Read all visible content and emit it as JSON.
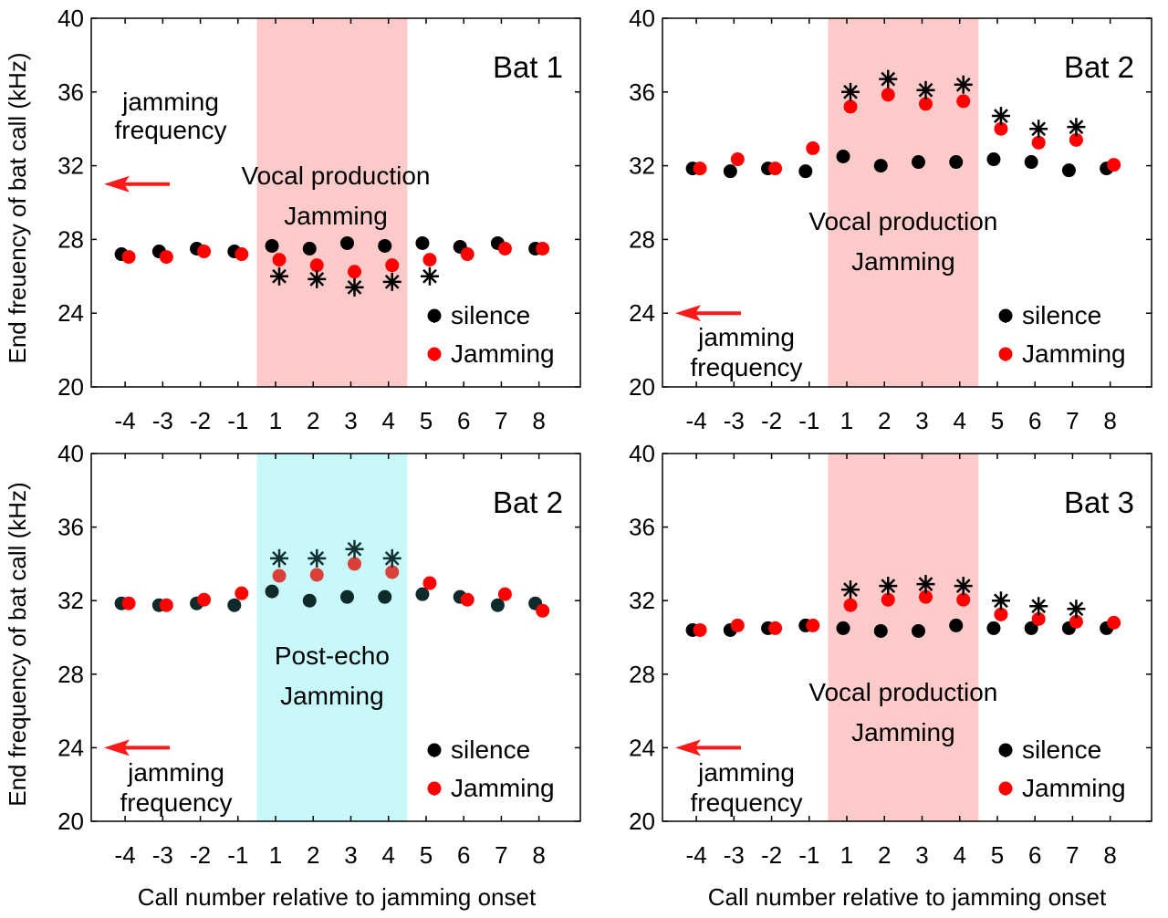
{
  "figure": {
    "xlabel": "Call number relative to jamming onset",
    "ylabel_top": "End freuency of bat call (kHz)",
    "ylabel_bottom": "End frequency of bat call (kHz)"
  },
  "colors": {
    "silence": "#000000",
    "jamming": "#ff0000",
    "vocal_band": "#fdcaca",
    "post_echo_band": "#c8f8fa",
    "arrow": "#ff1a1a"
  },
  "chart_data": [
    {
      "type": "scatter",
      "title": "Bat 1",
      "band_label": [
        "Vocal production",
        "Jamming"
      ],
      "band_style": "vocal",
      "band_range": [
        0.5,
        4.5
      ],
      "jamming_label": [
        "jamming",
        "frequency"
      ],
      "jamming_frequency_khz": 31,
      "categories": [
        "-4",
        "-3",
        "-2",
        "-1",
        "1",
        "2",
        "3",
        "4",
        "5",
        "6",
        "7",
        "8"
      ],
      "yticks": [
        "20",
        "24",
        "28",
        "32",
        "36",
        "40"
      ],
      "ylim": [
        20,
        40
      ],
      "legend_position": "bottom-right",
      "series": [
        {
          "name": "silence",
          "values": [
            27.2,
            27.35,
            27.5,
            27.35,
            27.65,
            27.5,
            27.8,
            27.65,
            27.8,
            27.6,
            27.8,
            27.5
          ]
        },
        {
          "name": "Jamming",
          "values": [
            27.05,
            27.05,
            27.35,
            27.2,
            26.9,
            26.6,
            26.25,
            26.6,
            26.9,
            27.2,
            27.5,
            27.5
          ]
        }
      ],
      "significance": [
        5,
        6,
        7,
        8,
        9
      ],
      "significance_values": [
        26.0,
        25.85,
        25.4,
        25.7,
        26.0
      ]
    },
    {
      "type": "scatter",
      "title": "Bat 2",
      "band_label": [
        "Vocal production",
        "Jamming"
      ],
      "band_style": "vocal",
      "band_range": [
        0.5,
        4.5
      ],
      "jamming_label": [
        "jamming",
        "frequency"
      ],
      "jamming_frequency_khz": 24,
      "categories": [
        "-4",
        "-3",
        "-2",
        "-1",
        "1",
        "2",
        "3",
        "4",
        "5",
        "6",
        "7",
        "8"
      ],
      "yticks": [
        "20",
        "24",
        "28",
        "32",
        "36",
        "40"
      ],
      "ylim": [
        20,
        40
      ],
      "legend_position": "bottom-right",
      "series": [
        {
          "name": "silence",
          "values": [
            31.85,
            31.7,
            31.85,
            31.7,
            32.5,
            32.0,
            32.2,
            32.2,
            32.35,
            32.2,
            31.75,
            31.85
          ]
        },
        {
          "name": "Jamming",
          "values": [
            31.85,
            32.35,
            31.85,
            32.95,
            35.2,
            35.85,
            35.35,
            35.5,
            34.0,
            33.25,
            33.4,
            32.05
          ]
        }
      ],
      "significance": [
        5,
        6,
        7,
        8,
        9,
        10,
        11
      ],
      "significance_values": [
        36.0,
        36.7,
        36.1,
        36.4,
        34.7,
        34.0,
        34.1
      ]
    },
    {
      "type": "scatter",
      "title": "Bat 2",
      "band_label": [
        "Post-echo",
        "Jamming"
      ],
      "band_style": "post_echo",
      "band_range": [
        0.5,
        4.5
      ],
      "jamming_label": [
        "jamming",
        "frequency"
      ],
      "jamming_frequency_khz": 24,
      "categories": [
        "-4",
        "-3",
        "-2",
        "-1",
        "1",
        "2",
        "3",
        "4",
        "5",
        "6",
        "7",
        "8"
      ],
      "yticks": [
        "20",
        "24",
        "28",
        "32",
        "36",
        "40"
      ],
      "ylim": [
        20,
        40
      ],
      "legend_position": "bottom-right",
      "series": [
        {
          "name": "silence",
          "values": [
            31.85,
            31.75,
            31.85,
            31.75,
            32.5,
            32.0,
            32.2,
            32.2,
            32.35,
            32.2,
            31.75,
            31.85
          ]
        },
        {
          "name": "Jamming",
          "values": [
            31.85,
            31.75,
            32.05,
            32.4,
            33.35,
            33.4,
            34.0,
            33.55,
            32.95,
            32.05,
            32.35,
            31.45
          ]
        }
      ],
      "significance": [
        5,
        6,
        7,
        8
      ],
      "significance_values": [
        34.3,
        34.3,
        34.8,
        34.3
      ]
    },
    {
      "type": "scatter",
      "title": "Bat 3",
      "band_label": [
        "Vocal production",
        "Jamming"
      ],
      "band_style": "vocal",
      "band_range": [
        0.5,
        4.5
      ],
      "jamming_label": [
        "jamming",
        "frequency"
      ],
      "jamming_frequency_khz": 24,
      "categories": [
        "-4",
        "-3",
        "-2",
        "-1",
        "1",
        "2",
        "3",
        "4",
        "5",
        "6",
        "7",
        "8"
      ],
      "yticks": [
        "20",
        "24",
        "28",
        "32",
        "36",
        "40"
      ],
      "ylim": [
        20,
        40
      ],
      "legend_position": "bottom-right",
      "series": [
        {
          "name": "silence",
          "values": [
            30.4,
            30.4,
            30.5,
            30.65,
            30.5,
            30.35,
            30.35,
            30.65,
            30.5,
            30.5,
            30.5,
            30.5
          ]
        },
        {
          "name": "Jamming",
          "values": [
            30.4,
            30.65,
            30.5,
            30.65,
            31.75,
            32.05,
            32.2,
            32.05,
            31.25,
            31.0,
            30.85,
            30.8
          ]
        }
      ],
      "significance": [
        5,
        6,
        7,
        8,
        9,
        10,
        11
      ],
      "significance_values": [
        32.6,
        32.8,
        32.9,
        32.8,
        32.0,
        31.7,
        31.55
      ]
    }
  ]
}
